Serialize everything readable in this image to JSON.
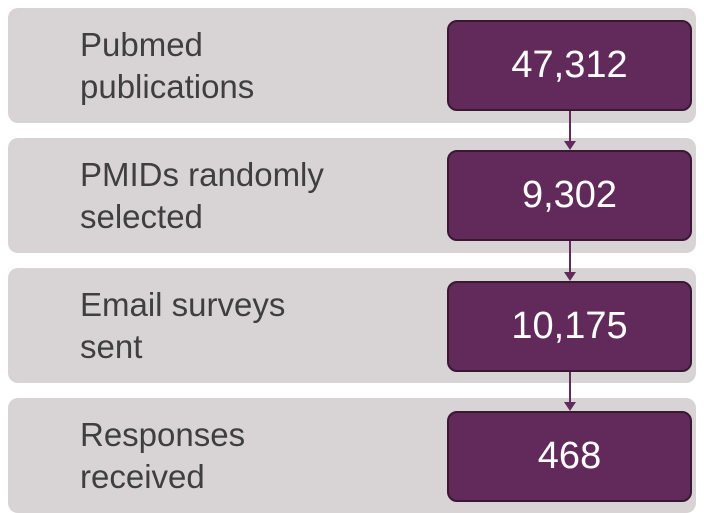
{
  "steps": [
    {
      "label": [
        "Pubmed",
        "publications"
      ],
      "count": "47,312"
    },
    {
      "label": [
        "PMIDs randomly",
        "selected"
      ],
      "count": "9,302"
    },
    {
      "label": [
        "Email surveys",
        "sent"
      ],
      "count": "10,175"
    },
    {
      "label": [
        "Responses",
        "received"
      ],
      "count": "468"
    }
  ]
}
